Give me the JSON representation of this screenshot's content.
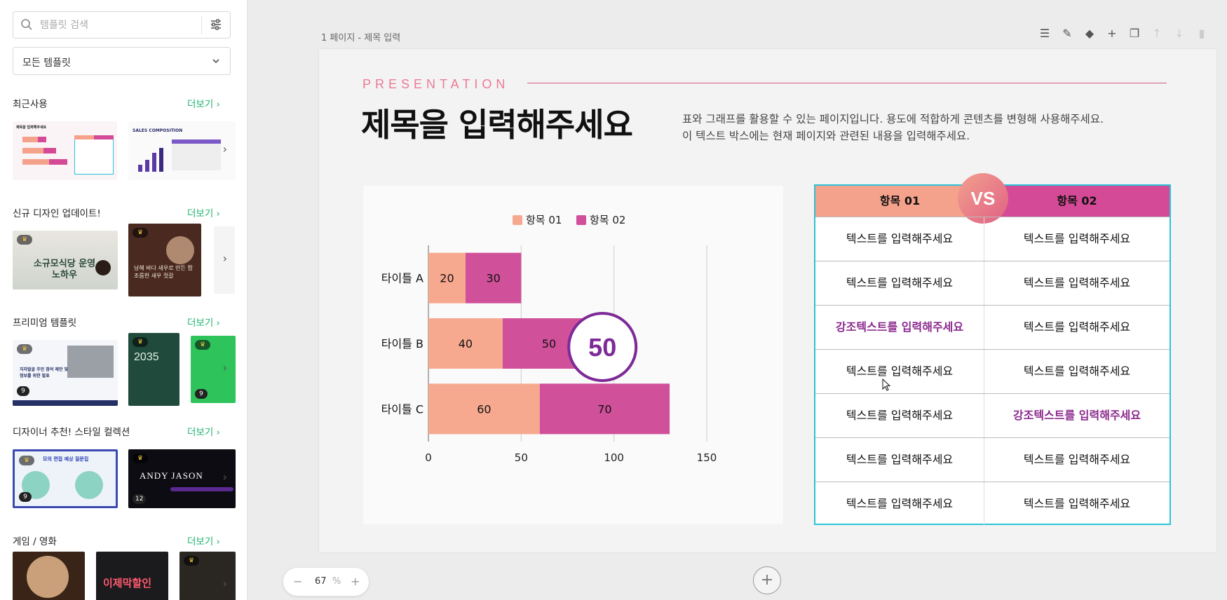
{
  "sidebar": {
    "search": {
      "placeholder": "템플릿 검색",
      "icon": "search-icon",
      "filter_icon": "sliders-icon"
    },
    "select": {
      "value": "모든 템플릿",
      "icon": "chevron-down-icon"
    },
    "sections": [
      {
        "title": "최근사용",
        "more": "더보기 ›",
        "badges": []
      },
      {
        "title": "신규 디자인 업데이트!",
        "more": "더보기 ›",
        "badges": []
      },
      {
        "title": "프리미엄 템플릿",
        "more": "더보기 ›",
        "badges": [
          "9",
          "9"
        ]
      },
      {
        "title": "디자이너 추천! 스타일 컬렉션",
        "more": "더보기 ›",
        "badges": [
          "9",
          "12"
        ]
      },
      {
        "title": "게임 / 영화",
        "more": "더보기 ›",
        "badges": []
      }
    ],
    "thumb_texts": {
      "t1": "제목을 입력해주세요",
      "t2": "SALES COMPOSITION",
      "t3": "소규모식당 운영노하우",
      "t4": "남해 바다 새우로 만든 짭조름한 새우 젓갈",
      "t5": "지자발굴 주민 참여 제안 및 정보를 위한 발표",
      "t6": "2035",
      "t7": "모의 면접 예상 질문집",
      "t8": "ANDY JASON",
      "t9": "이제막할인"
    },
    "crown_glyph": "♛"
  },
  "editor": {
    "page_label": "1 페이지 - 제목 입력",
    "toolbar": [
      "note-icon",
      "style-icon",
      "fill-icon",
      "add-icon",
      "copy-icon",
      "up-icon",
      "down-icon",
      "delete-icon"
    ],
    "zoom": {
      "minus": "−",
      "value": "67",
      "unit": "%",
      "plus": "+"
    },
    "add_page": "+"
  },
  "slide": {
    "kicker": "PRESENTATION",
    "title": "제목을 입력해주세요",
    "desc_line1": "표와 그래프를 활용할 수 있는 페이지입니다. 용도에 적합하게 콘텐츠를 변형해 사용해주세요.",
    "desc_line2": "이 텍스트 박스에는 현재 페이지와 관련된 내용을 입력해주세요.",
    "table": {
      "headers": [
        "항목 01",
        "항목 02"
      ],
      "vs": "VS",
      "rows": [
        [
          "텍스트를 입력해주세요",
          "텍스트를 입력해주세요"
        ],
        [
          "텍스트를 입력해주세요",
          "텍스트를 입력해주세요"
        ],
        [
          "강조텍스트를 입력해주세요",
          "텍스트를 입력해주세요"
        ],
        [
          "텍스트를 입력해주세요",
          "텍스트를 입력해주세요"
        ],
        [
          "텍스트를 입력해주세요",
          "강조텍스트를 입력해주세요"
        ],
        [
          "텍스트를 입력해주세요",
          "텍스트를 입력해주세요"
        ],
        [
          "텍스트를 입력해주세요",
          "텍스트를 입력해주세요"
        ]
      ],
      "emphasis": [
        [
          2,
          0
        ],
        [
          4,
          1
        ]
      ],
      "header_colors": [
        "#f5a28c",
        "#d54a96"
      ],
      "emphasis_color": "#8c2a8e",
      "border_color": "#2ac3d6"
    }
  },
  "chart_data": {
    "type": "bar",
    "orientation": "horizontal",
    "stacked": true,
    "categories": [
      "타이틀 A",
      "타이틀 B",
      "타이틀 C"
    ],
    "series": [
      {
        "name": "항목 01",
        "values": [
          20,
          40,
          60
        ],
        "color": "#f7a990"
      },
      {
        "name": "항목 02",
        "values": [
          30,
          50,
          70
        ],
        "color": "#d0509a"
      }
    ],
    "xlim": [
      0,
      150
    ],
    "xticks": [
      0,
      50,
      100,
      150
    ],
    "grid": true,
    "legend": "top-center",
    "highlight": {
      "category": "타이틀 B",
      "value": "50",
      "color": "#7d2a98"
    }
  }
}
